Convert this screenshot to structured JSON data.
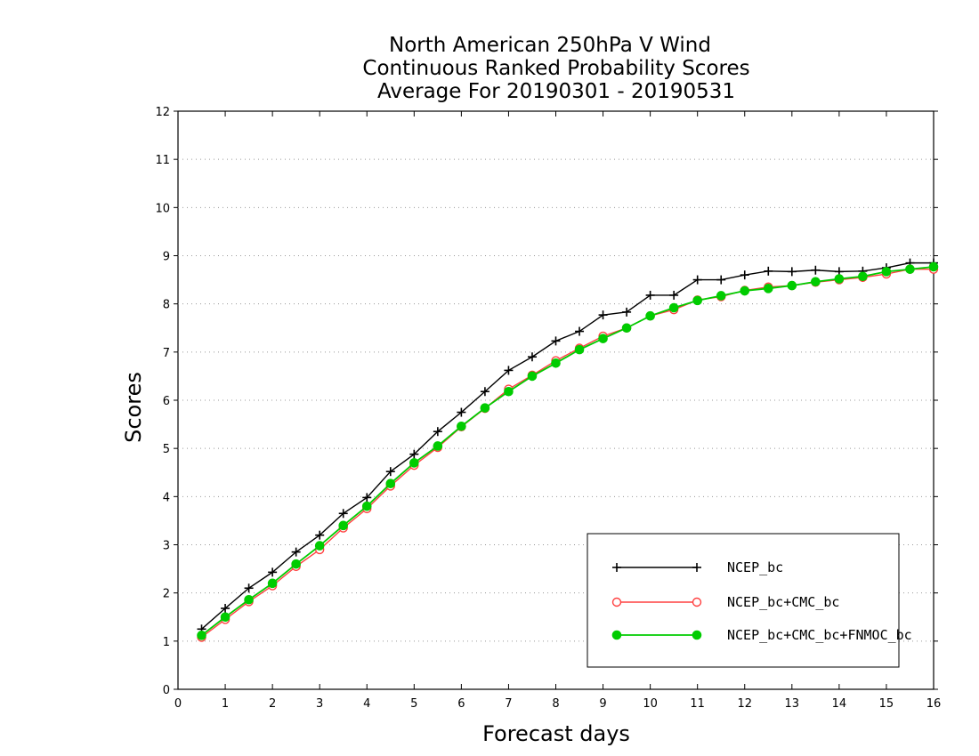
{
  "chart_data": {
    "type": "line",
    "title_lines": [
      "North American 250hPa V Wind",
      "Continuous Ranked Probability Scores",
      "Average For 20190301 - 20190531"
    ],
    "xlabel": "Forecast days",
    "ylabel": "Scores",
    "xlim": [
      0,
      16
    ],
    "ylim": [
      0,
      12
    ],
    "xticks": [
      "0",
      "1",
      "2",
      "3",
      "4",
      "5",
      "6",
      "7",
      "8",
      "9",
      "10",
      "11",
      "12",
      "13",
      "14",
      "15",
      "16"
    ],
    "yticks": [
      "0",
      "1",
      "2",
      "3",
      "4",
      "5",
      "6",
      "7",
      "8",
      "9",
      "10",
      "11",
      "12"
    ],
    "grid": "horizontal dotted",
    "legend_position": "bottom-right",
    "x": [
      0.5,
      1,
      1.5,
      2,
      2.5,
      3,
      3.5,
      4,
      4.5,
      5,
      5.5,
      6,
      6.5,
      7,
      7.5,
      8,
      8.5,
      9,
      9.5,
      10,
      10.5,
      11,
      11.5,
      12,
      12.5,
      13,
      13.5,
      14,
      14.5,
      15,
      15.5,
      16
    ],
    "series": [
      {
        "name": "NCEP_bc",
        "color": "#000000",
        "marker": "plus",
        "values": [
          1.25,
          1.68,
          2.1,
          2.43,
          2.85,
          3.2,
          3.65,
          3.98,
          4.52,
          4.88,
          5.35,
          5.75,
          6.18,
          6.62,
          6.9,
          7.23,
          7.43,
          7.77,
          7.83,
          8.18,
          8.18,
          8.5,
          8.5,
          8.6,
          8.68,
          8.67,
          8.7,
          8.67,
          8.68,
          8.75,
          8.85,
          8.85
        ]
      },
      {
        "name": "NCEP_bc+CMC_bc",
        "color": "#ff4040",
        "marker": "open-circle",
        "values": [
          1.08,
          1.45,
          1.82,
          2.15,
          2.55,
          2.9,
          3.35,
          3.75,
          4.22,
          4.65,
          5.02,
          5.45,
          5.83,
          6.23,
          6.52,
          6.82,
          7.08,
          7.33,
          7.5,
          7.75,
          7.88,
          8.08,
          8.15,
          8.28,
          8.35,
          8.38,
          8.45,
          8.5,
          8.55,
          8.62,
          8.72,
          8.72
        ]
      },
      {
        "name": "NCEP_bc+CMC_bc+FNMOC_bc",
        "color": "#00cc00",
        "marker": "filled-circle",
        "values": [
          1.12,
          1.5,
          1.86,
          2.2,
          2.6,
          2.98,
          3.4,
          3.8,
          4.27,
          4.7,
          5.05,
          5.46,
          5.84,
          6.18,
          6.5,
          6.77,
          7.05,
          7.28,
          7.5,
          7.75,
          7.92,
          8.07,
          8.17,
          8.27,
          8.32,
          8.38,
          8.46,
          8.52,
          8.57,
          8.67,
          8.72,
          8.77
        ]
      }
    ]
  }
}
